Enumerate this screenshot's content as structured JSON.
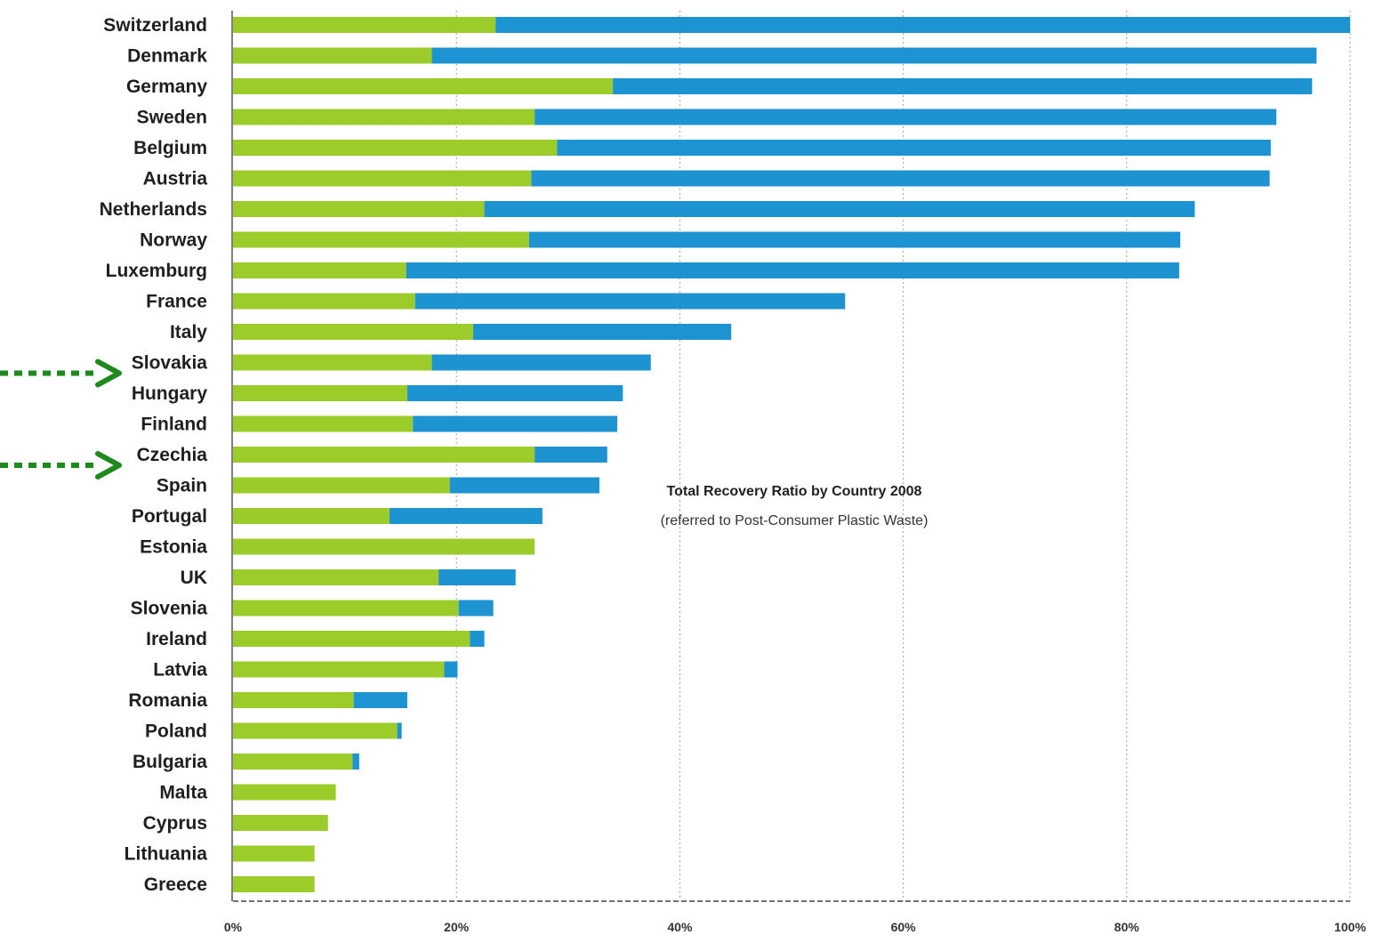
{
  "chart_data": {
    "type": "bar",
    "orientation": "horizontal",
    "stacked": true,
    "title": "Total Recovery Ratio by Country 2008",
    "subtitle": "(referred to Post-Consumer Plastic Waste)",
    "categories": [
      "Switzerland",
      "Denmark",
      "Germany",
      "Sweden",
      "Belgium",
      "Austria",
      "Netherlands",
      "Norway",
      "Luxemburg",
      "France",
      "Italy",
      "Slovakia",
      "Hungary",
      "Finland",
      "Czechia",
      "Spain",
      "Portugal",
      "Estonia",
      "UK",
      "Slovenia",
      "Ireland",
      "Latvia",
      "Romania",
      "Poland",
      "Bulgaria",
      "Malta",
      "Cyprus",
      "Lithuania",
      "Greece"
    ],
    "series": [
      {
        "color": "#9ccc2a",
        "values": [
          23.5,
          17.8,
          34,
          27,
          29,
          26.7,
          22.5,
          26.5,
          15.5,
          16.3,
          21.5,
          17.8,
          15.6,
          16.1,
          27,
          19.4,
          14,
          27,
          18.4,
          20.2,
          21.2,
          18.9,
          10.8,
          14.7,
          10.7,
          9.2,
          8.5,
          7.3,
          7.3
        ]
      },
      {
        "color": "#1e93d2",
        "values": [
          76.5,
          79.2,
          62.6,
          66.4,
          63.9,
          66.1,
          63.6,
          58.3,
          69.2,
          38.5,
          23.1,
          19.6,
          19.3,
          18.3,
          6.5,
          13.4,
          13.7,
          0,
          6.9,
          3.1,
          1.3,
          1.2,
          4.8,
          0.4,
          0.6,
          0,
          0,
          0,
          0
        ]
      }
    ],
    "x_ticks": [
      "0%",
      "20%",
      "40%",
      "60%",
      "80%",
      "100%"
    ],
    "xlim": [
      0,
      100
    ],
    "grid": true,
    "annotations": [
      {
        "type": "arrow",
        "style": "dotted",
        "color": "#1e8a1e",
        "points_to": "Slovakia"
      },
      {
        "type": "arrow",
        "style": "dotted",
        "color": "#1e8a1e",
        "points_to": "Czechia"
      }
    ]
  }
}
